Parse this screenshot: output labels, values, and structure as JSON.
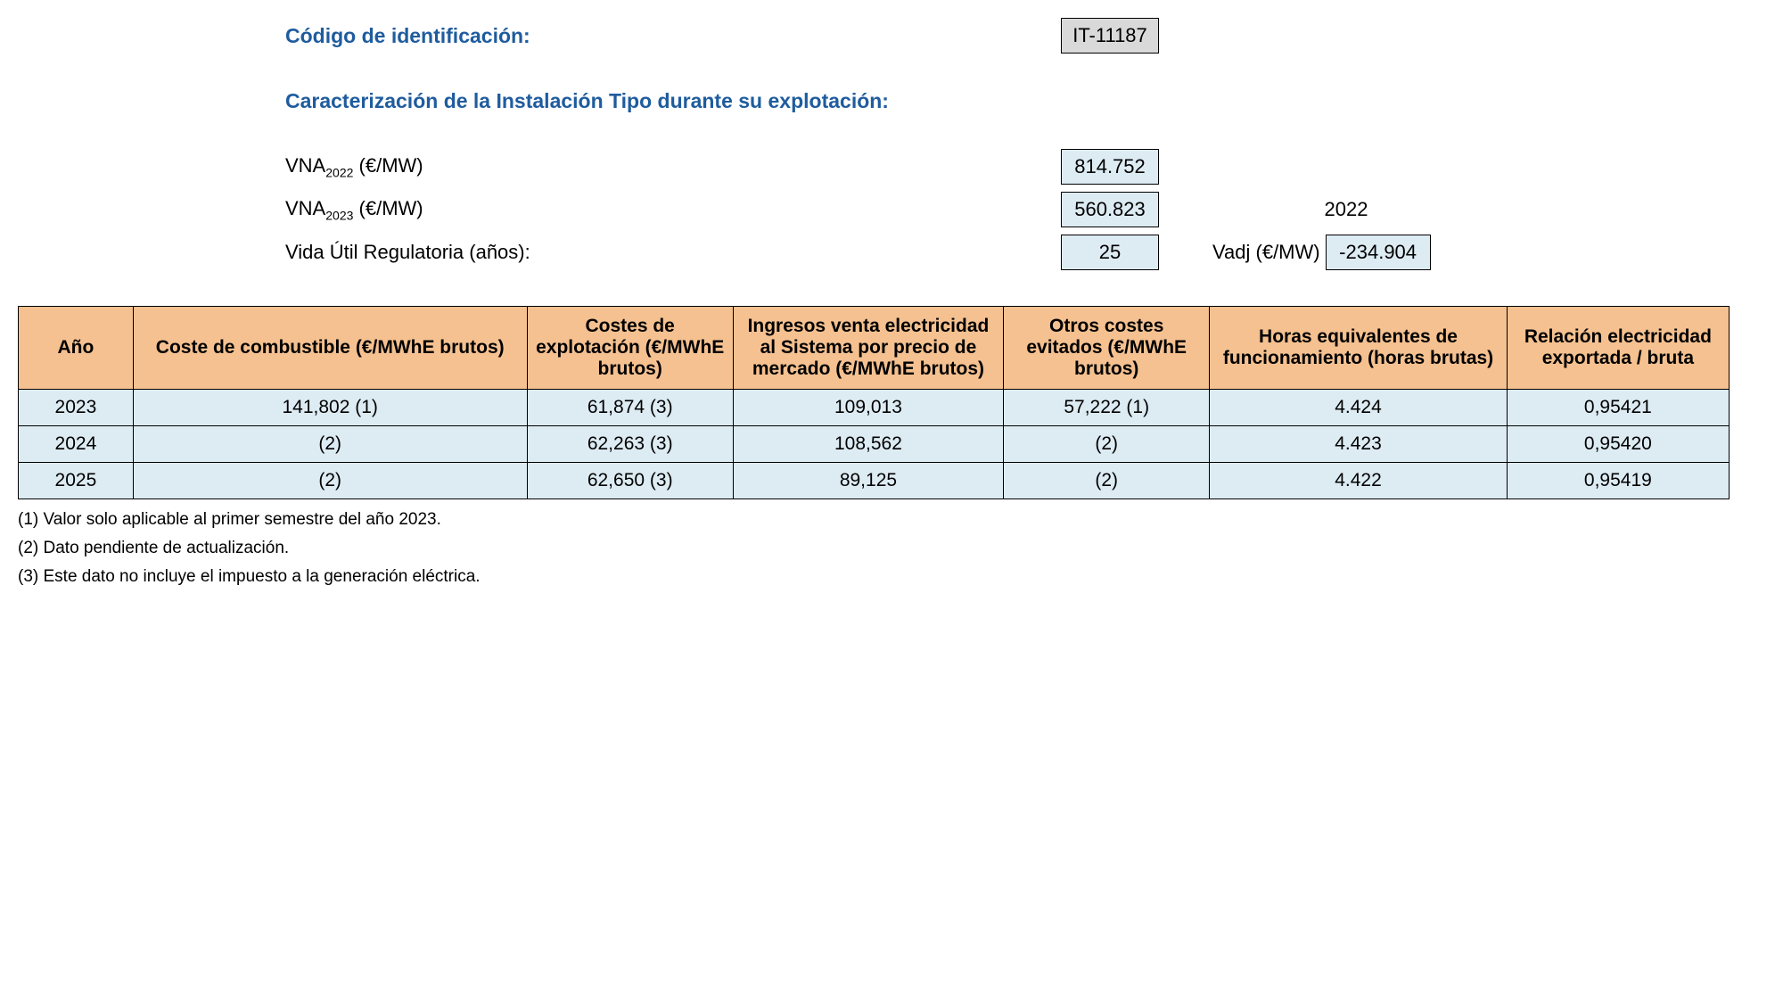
{
  "header": {
    "id_label": "Código de identificación:",
    "id_value": "IT-11187",
    "caracterizacion_label": "Caracterización de la Instalación Tipo durante su explotación:",
    "vna2022_label_pre": "VNA",
    "vna2022_sub": "2022",
    "vna2022_label_post": " (€/MW)",
    "vna2022_value": "814.752",
    "vna2023_label_pre": "VNA",
    "vna2023_sub": "2023",
    "vna2023_label_post": " (€/MW)",
    "vna2023_value": "560.823",
    "side_year": "2022",
    "vida_label": "Vida Útil Regulatoria (años):",
    "vida_value": "25",
    "vadj_label": "Vadj (€/MW)",
    "vadj_value": "-234.904"
  },
  "table": {
    "columns": [
      "Año",
      "Coste de combustible (€/MWhE brutos)",
      "Costes de explotación (€/MWhE brutos)",
      "Ingresos venta electricidad al Sistema por precio de mercado (€/MWhE brutos)",
      "Otros costes evitados (€/MWhE brutos)",
      "Horas equivalentes de funcionamiento (horas brutas)",
      "Relación electricidad exportada / bruta"
    ],
    "col_widths": [
      "90px",
      "350px",
      "175px",
      "235px",
      "175px",
      "260px",
      "190px"
    ],
    "header_bg": "#f5c190",
    "row_bg": "#ddebf3",
    "rows": [
      [
        "2023",
        "141,802 (1)",
        "61,874 (3)",
        "109,013",
        "57,222 (1)",
        "4.424",
        "0,95421"
      ],
      [
        "2024",
        "(2)",
        "62,263 (3)",
        "108,562",
        "(2)",
        "4.423",
        "0,95420"
      ],
      [
        "2025",
        "(2)",
        "62,650 (3)",
        "89,125",
        "(2)",
        "4.422",
        "0,95419"
      ]
    ]
  },
  "footnotes": [
    "(1) Valor solo aplicable al primer semestre del año 2023.",
    "(2) Dato pendiente de actualización.",
    "(3) Este dato no incluye el impuesto a la generación eléctrica."
  ]
}
